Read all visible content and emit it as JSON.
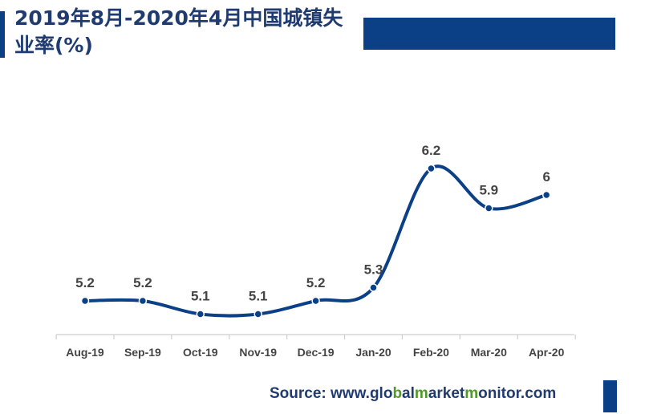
{
  "title": "2019年8月-2020年4月中国城镇失业率(%)",
  "source": {
    "prefix": "Source: www.",
    "parts": [
      "glo",
      "b",
      "al",
      "m",
      "arket",
      "m",
      "onitor.com"
    ]
  },
  "colors": {
    "primary": "#0b3f86",
    "accent_green": "#4f9a23",
    "text_dark": "#1f3b70",
    "label_gray": "#444444",
    "axis": "#cfcfcf"
  },
  "chart_data": {
    "type": "line",
    "title": "2019年8月-2020年4月中国城镇失业率(%)",
    "categories": [
      "Aug-19",
      "Sep-19",
      "Oct-19",
      "Nov-19",
      "Dec-19",
      "Jan-20",
      "Feb-20",
      "Mar-20",
      "Apr-20"
    ],
    "values": [
      5.2,
      5.2,
      5.1,
      5.1,
      5.2,
      5.3,
      6.2,
      5.9,
      6
    ],
    "data_labels": [
      "5.2",
      "5.2",
      "5.1",
      "5.1",
      "5.2",
      "5.3",
      "6.2",
      "5.9",
      "6"
    ],
    "smooth": true,
    "grid": false,
    "legend": "none"
  }
}
